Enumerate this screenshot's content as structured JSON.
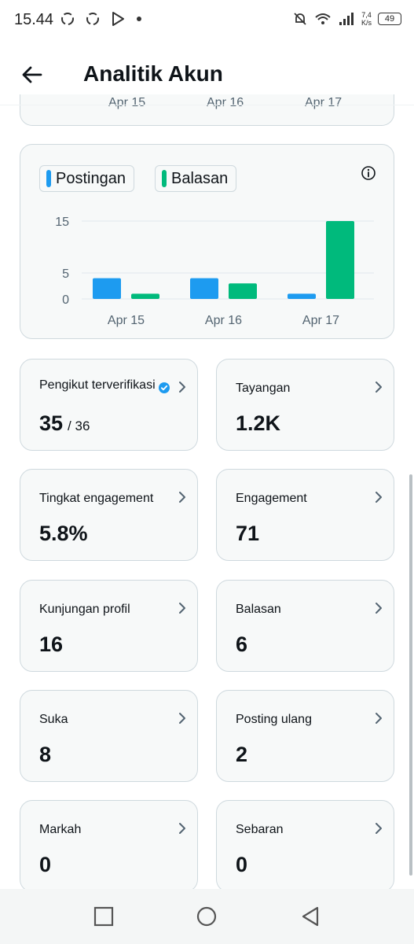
{
  "status_bar": {
    "time": "15.44",
    "speed_top": "7,4",
    "speed_bottom": "K/s",
    "battery": "49",
    "left_icons": [
      "sync-icon",
      "sync-icon",
      "play-store-icon",
      "dot-icon"
    ],
    "right_icons": [
      "bell-off-icon",
      "wifi-icon",
      "signal-icon",
      "battery-icon"
    ]
  },
  "header": {
    "title": "Analitik Akun"
  },
  "partial_chart": {
    "labels": [
      "Apr 15",
      "Apr 16",
      "Apr 17"
    ]
  },
  "chart": {
    "legend": [
      {
        "label": "Postingan",
        "color": "#1d9bf0"
      },
      {
        "label": "Balasan",
        "color": "#00ba7c"
      }
    ]
  },
  "chart_data": {
    "type": "bar",
    "categories": [
      "Apr 15",
      "Apr 16",
      "Apr 17"
    ],
    "series": [
      {
        "name": "Postingan",
        "values": [
          4,
          4,
          1
        ],
        "color": "#1d9bf0"
      },
      {
        "name": "Balasan",
        "values": [
          1,
          3,
          15
        ],
        "color": "#00ba7c"
      }
    ],
    "yticks": [
      0,
      5,
      15
    ],
    "ylim": [
      0,
      15
    ],
    "grid": true,
    "legend_position": "top-left"
  },
  "stats": [
    {
      "label": "Pengikut terverifikasi",
      "value": "35",
      "sub": "/ 36",
      "verified": true
    },
    {
      "label": "Tayangan",
      "value": "1.2K"
    },
    {
      "label": "Tingkat engagement",
      "value": "5.8%"
    },
    {
      "label": "Engagement",
      "value": "71"
    },
    {
      "label": "Kunjungan profil",
      "value": "16"
    },
    {
      "label": "Balasan",
      "value": "6"
    },
    {
      "label": "Suka",
      "value": "8"
    },
    {
      "label": "Posting ulang",
      "value": "2"
    },
    {
      "label": "Markah",
      "value": "0"
    },
    {
      "label": "Sebaran",
      "value": "0"
    }
  ],
  "colors": {
    "accent": "#1d9bf0",
    "secondary": "#00ba7c",
    "card_bg": "#f7f9f9",
    "card_border": "#cfd9de"
  }
}
